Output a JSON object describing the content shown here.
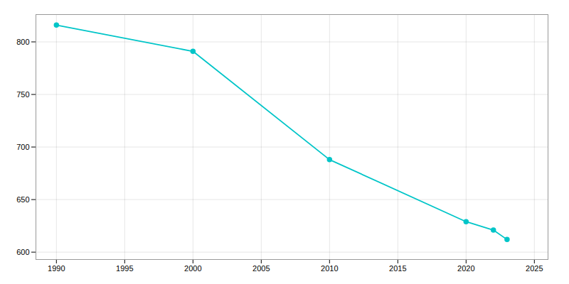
{
  "chart_data": {
    "type": "line",
    "x": [
      1990,
      2000,
      2010,
      2020,
      2022,
      2023
    ],
    "values": [
      816,
      791,
      688,
      629,
      621,
      612
    ],
    "color": "#00C5C8",
    "marker": "circle",
    "xlim": [
      1988.5,
      2026
    ],
    "xticks": [
      1990,
      1995,
      2000,
      2005,
      2010,
      2015,
      2020,
      2025
    ],
    "ylim": [
      593,
      826
    ],
    "yticks": [
      600,
      650,
      700,
      750,
      800
    ],
    "grid": true
  }
}
